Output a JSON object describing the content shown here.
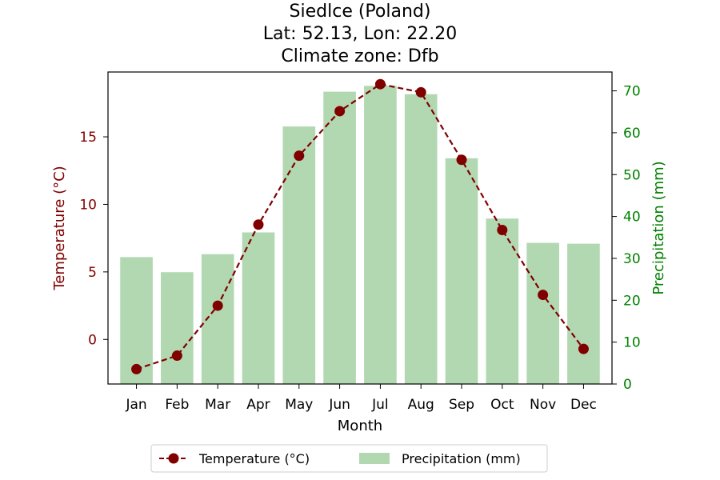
{
  "chart_data": {
    "type": "bar+line",
    "title": [
      "Siedlce (Poland)",
      "Lat: 52.13, Lon: 22.20",
      "Climate zone: Dfb"
    ],
    "xlabel": "Month",
    "categories": [
      "Jan",
      "Feb",
      "Mar",
      "Apr",
      "May",
      "Jun",
      "Jul",
      "Aug",
      "Sep",
      "Oct",
      "Nov",
      "Dec"
    ],
    "temperature": {
      "name": "Temperature (°C)",
      "axis_label": "Temperature (°C)",
      "color": "#800000",
      "ylim": [
        -3.3,
        19.8
      ],
      "ticks": [
        0,
        5,
        10,
        15
      ],
      "values": [
        -2.2,
        -1.2,
        2.5,
        8.5,
        13.6,
        16.9,
        18.9,
        18.3,
        13.3,
        8.1,
        3.3,
        -0.7
      ]
    },
    "precipitation": {
      "name": "Precipitation (mm)",
      "axis_label": "Precipitation (mm)",
      "color": "#008000",
      "bar_color": "#b2d8b2",
      "ylim": [
        0,
        74.5
      ],
      "ticks": [
        0,
        10,
        20,
        30,
        40,
        50,
        60,
        70
      ],
      "values": [
        30.3,
        26.7,
        31.0,
        36.2,
        61.5,
        69.8,
        71.2,
        69.2,
        53.9,
        39.5,
        33.7,
        33.5
      ]
    },
    "legend_position": "bottom-center"
  }
}
